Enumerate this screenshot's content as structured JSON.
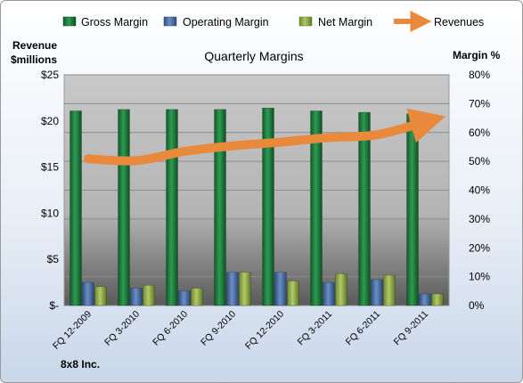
{
  "chart_data": {
    "type": "bar",
    "title": "Quarterly Margins",
    "y_left_label": [
      "Revenue",
      "$millions"
    ],
    "y_right_label": "Margin %",
    "footer": "8x8 Inc.",
    "categories": [
      "FQ 12-2009",
      "FQ 3-2010",
      "FQ 6-2010",
      "FQ 9-2010",
      "FQ 12-2010",
      "FQ 3-2011",
      "FQ 6-2011",
      "FQ 9-2011"
    ],
    "y_left_ticks": [
      "$-",
      "$5",
      "$10",
      "$15",
      "$20",
      "$25"
    ],
    "y_left_lim": [
      0,
      25
    ],
    "y_right_ticks": [
      "0%",
      "10%",
      "20%",
      "30%",
      "40%",
      "50%",
      "60%",
      "70%",
      "80%"
    ],
    "y_right_lim": [
      0,
      80
    ],
    "grid": true,
    "legend_position": "top",
    "series": [
      {
        "name": "Gross Margin",
        "axis": "right",
        "kind": "bar",
        "color": "#1e7a3c",
        "values": [
          67.5,
          68,
          68,
          68,
          68.5,
          67.5,
          67,
          66.5
        ]
      },
      {
        "name": "Operating Margin",
        "axis": "right",
        "kind": "bar",
        "color": "#4a6fa5",
        "values": [
          8,
          6,
          5,
          11.5,
          11.5,
          8,
          9,
          4
        ]
      },
      {
        "name": "Net Margin",
        "axis": "right",
        "kind": "bar",
        "color": "#8ba63f",
        "values": [
          6.5,
          7,
          6,
          11.5,
          8.5,
          11,
          10.5,
          4
        ]
      },
      {
        "name": "Revenues",
        "axis": "left",
        "kind": "line",
        "color": "#e8893c",
        "values": [
          15.9,
          15.7,
          16.7,
          17.3,
          17.7,
          18.2,
          18.5,
          19.9
        ]
      }
    ]
  }
}
